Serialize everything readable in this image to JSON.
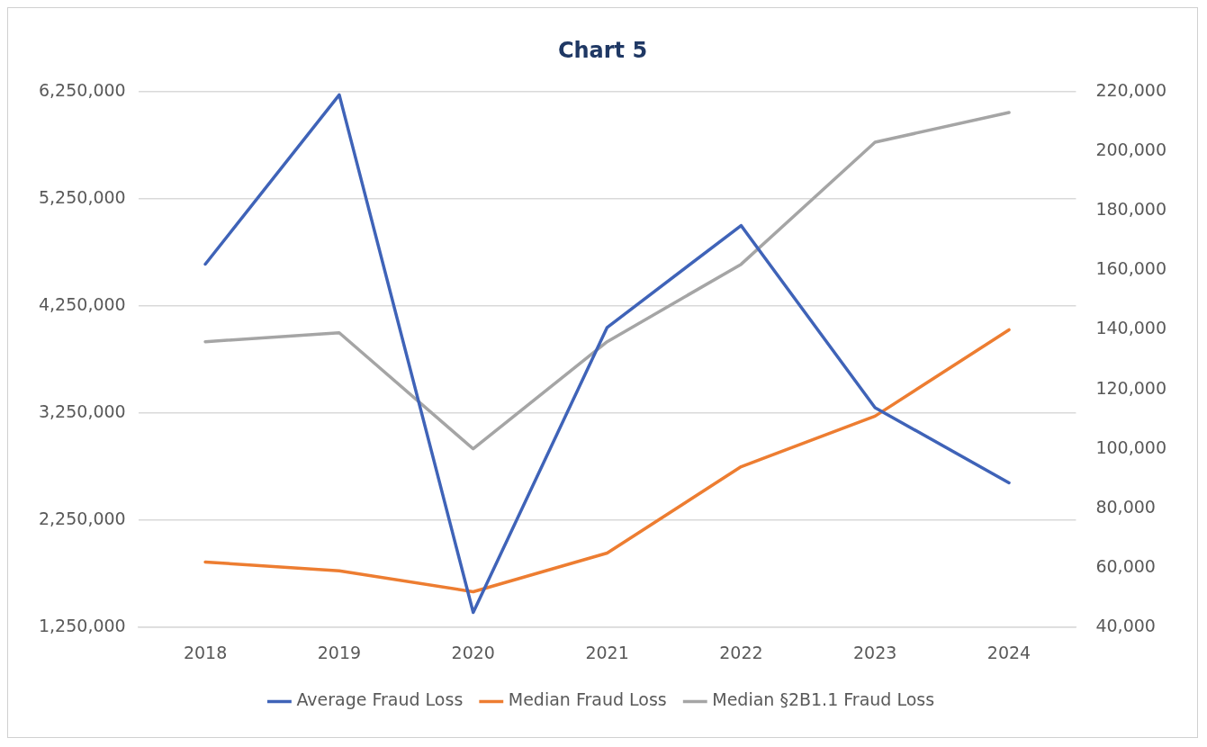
{
  "chart_data": {
    "type": "line",
    "title": "Chart 5",
    "categories": [
      "2018",
      "2019",
      "2020",
      "2021",
      "2022",
      "2023",
      "2024"
    ],
    "series": [
      {
        "name": "Average Fraud Loss",
        "color": "#3f63b8",
        "values": [
          4640000,
          6220000,
          1390000,
          4050000,
          5000000,
          3300000,
          2600000
        ]
      },
      {
        "name": "Median Fraud Loss",
        "color": "#ed7d31",
        "axis": "y2",
        "values": [
          62000,
          59000,
          52000,
          65000,
          94000,
          111000,
          140000
        ]
      },
      {
        "name": "Median §2B1.1 Fraud Loss",
        "color": "#a5a5a5",
        "axis": "y2",
        "values": [
          136000,
          139000,
          100000,
          136000,
          162000,
          203000,
          213000
        ]
      }
    ],
    "ylim": [
      1250000,
      6250000
    ],
    "yticks": [
      {
        "value": 1250000,
        "label": "1,250,000"
      },
      {
        "value": 2250000,
        "label": "2,250,000"
      },
      {
        "value": 3250000,
        "label": "3,250,000"
      },
      {
        "value": 4250000,
        "label": "4,250,000"
      },
      {
        "value": 5250000,
        "label": "5,250,000"
      },
      {
        "value": 6250000,
        "label": "6,250,000"
      }
    ],
    "y2lim": [
      40000,
      220000
    ],
    "y2ticks": [
      {
        "value": 40000,
        "label": "40,000"
      },
      {
        "value": 60000,
        "label": "60,000"
      },
      {
        "value": 80000,
        "label": "80,000"
      },
      {
        "value": 100000,
        "label": "100,000"
      },
      {
        "value": 120000,
        "label": "120,000"
      },
      {
        "value": 140000,
        "label": "140,000"
      },
      {
        "value": 160000,
        "label": "160,000"
      },
      {
        "value": 180000,
        "label": "180,000"
      },
      {
        "value": 200000,
        "label": "200,000"
      },
      {
        "value": 220000,
        "label": "220,000"
      }
    ],
    "grid": "y",
    "legend": "bottom",
    "marker": "none",
    "line_style": "solid"
  }
}
